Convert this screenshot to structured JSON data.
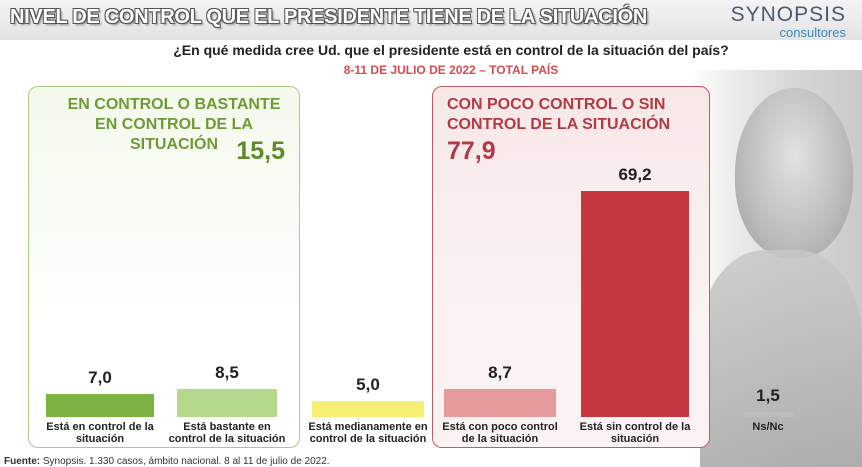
{
  "header": {
    "title": "NIVEL DE CONTROL QUE EL PRESIDENTE TIENE DE LA SITUACIÓN",
    "brand_name": "SYNOPSIS",
    "brand_sub": "consultores"
  },
  "question": "¿En qué medida cree Ud. que el presidente está en control de la situación del país?",
  "date_line": "8-11 DE JULIO DE 2022 – TOTAL PAÍS",
  "groups": {
    "positive": {
      "title": "EN CONTROL O BASTANTE EN CONTROL DE LA SITUACIÓN",
      "total": "15,5",
      "color": "#6e9a38"
    },
    "negative": {
      "title": "CON POCO CONTROL O SIN CONTROL DE LA SITUACIÓN",
      "total": "77,9",
      "color": "#b23a45"
    }
  },
  "chart_data": {
    "type": "bar",
    "categories": [
      "Está en control de la situación",
      "Está bastante en control de la situación",
      "Está medianamente en control de la situación",
      "Está con poco control de la situación",
      "Está sin control de la situación",
      "Ns/Nc"
    ],
    "values": [
      7.0,
      8.5,
      5.0,
      8.7,
      69.2,
      1.5
    ],
    "value_labels": [
      "7,0",
      "8,5",
      "5,0",
      "8,7",
      "69,2",
      "1,5"
    ],
    "colors": [
      "#7cb342",
      "#b5d98c",
      "#f6ef74",
      "#e59a9c",
      "#c6373f",
      "#bdbdbd"
    ],
    "ylim": [
      0,
      70
    ]
  },
  "footer": {
    "label": "Fuente:",
    "text": " Synopsis. 1.330 casos, ámbito nacional. 8 al 11 de julio de 2022."
  }
}
